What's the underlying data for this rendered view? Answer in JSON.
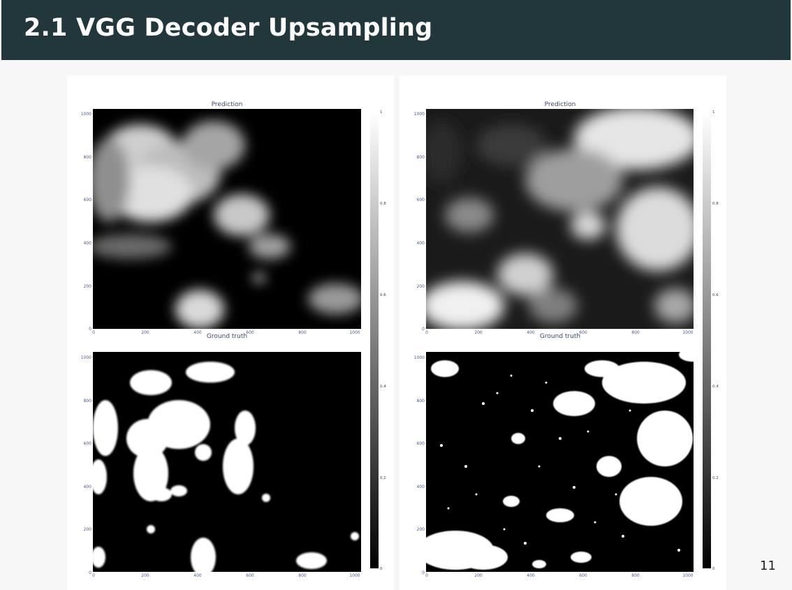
{
  "slide": {
    "title": "2.1 VGG Decoder Upsampling",
    "page_number": "11"
  },
  "panels": [
    {
      "top_title": "Prediction",
      "bottom_title": "Ground truth",
      "y_ticks": [
        "1000",
        "800",
        "600",
        "400",
        "200",
        "0"
      ],
      "x_ticks": [
        "0",
        "200",
        "400",
        "600",
        "800",
        "1000"
      ],
      "colorbar_ticks": [
        "1",
        "0.8",
        "0.6",
        "0.4",
        "0.2",
        "0"
      ]
    },
    {
      "top_title": "Prediction",
      "bottom_title": "Ground truth",
      "y_ticks": [
        "1000",
        "800",
        "600",
        "400",
        "200",
        "0"
      ],
      "x_ticks": [
        "0",
        "200",
        "400",
        "600",
        "800",
        "1000"
      ],
      "colorbar_ticks": [
        "1",
        "0.8",
        "0.6",
        "0.4",
        "0.2",
        "0"
      ]
    }
  ],
  "colors": {
    "header_bg": "#22373b",
    "map_low": "#000000",
    "map_high": "#ffffff"
  }
}
